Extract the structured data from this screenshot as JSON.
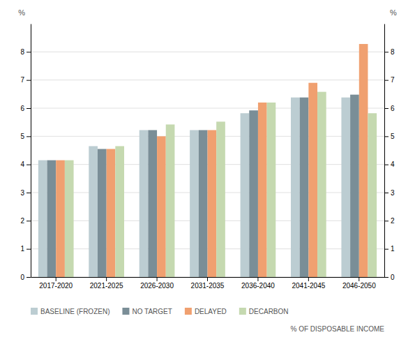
{
  "chart_data": {
    "type": "bar",
    "categories": [
      "2017-2020",
      "2021-2025",
      "2026-2030",
      "2031-2035",
      "2036-2040",
      "2041-2045",
      "2046-2050"
    ],
    "series": [
      {
        "name": "BASELINE (FROZEN)",
        "color": "#bccdd2",
        "values": [
          4.15,
          4.65,
          5.22,
          5.22,
          5.82,
          6.38,
          6.38
        ]
      },
      {
        "name": "NO TARGET",
        "color": "#7a8e97",
        "values": [
          4.15,
          4.55,
          5.22,
          5.22,
          5.92,
          6.38,
          6.48
        ]
      },
      {
        "name": "DELAYED",
        "color": "#f0a070",
        "values": [
          4.15,
          4.55,
          5.0,
          5.22,
          6.2,
          6.9,
          8.28
        ]
      },
      {
        "name": "DECARBON",
        "color": "#c5d9b0",
        "values": [
          4.15,
          4.65,
          5.42,
          5.52,
          6.2,
          6.58,
          5.82
        ]
      }
    ],
    "ylim": [
      0,
      9
    ],
    "yticks": [
      0,
      1,
      2,
      3,
      4,
      5,
      6,
      7,
      8
    ],
    "y2lim": [
      0,
      9
    ],
    "y2ticks": [
      0,
      1,
      2,
      3,
      4,
      5,
      6,
      7,
      8
    ],
    "ylabel": "%",
    "y2label": "%",
    "annotations": [
      "% OF DISPOSABLE INCOME"
    ],
    "grid": true,
    "legend": "bottom"
  }
}
